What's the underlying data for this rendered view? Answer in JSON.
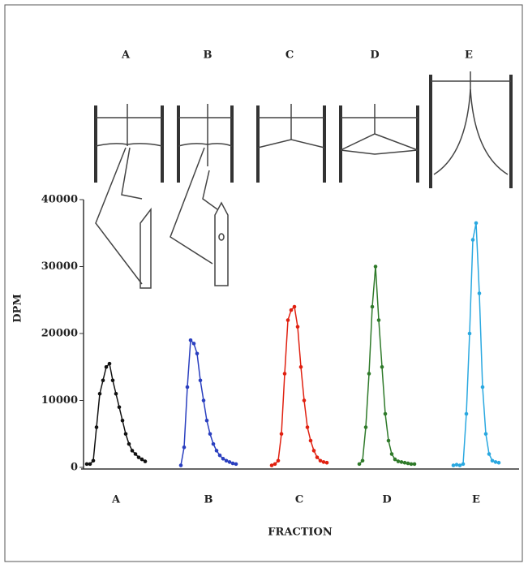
{
  "chart_data": {
    "type": "line",
    "ylabel": "DPM",
    "xlabel": "FRACTION",
    "diagrams": [
      {
        "label": "A"
      },
      {
        "label": "B"
      },
      {
        "label": "C"
      },
      {
        "label": "D"
      },
      {
        "label": "E"
      }
    ],
    "xlim": [
      0,
      134
    ],
    "ylim": [
      0,
      40000
    ],
    "yticks": [
      0,
      10000,
      20000,
      30000,
      40000
    ],
    "series": [
      {
        "name": "A",
        "color": "#111111",
        "x": [
          1,
          2,
          3,
          4,
          5,
          6,
          7,
          8,
          9,
          10,
          11,
          12,
          13,
          14,
          15,
          16,
          17,
          18,
          19
        ],
        "values": [
          500,
          500,
          1000,
          6000,
          11000,
          13000,
          15000,
          15500,
          13000,
          11000,
          9000,
          7000,
          5000,
          3500,
          2500,
          2000,
          1500,
          1200,
          900
        ]
      },
      {
        "name": "B",
        "color": "#2a3fbf",
        "x": [
          30,
          31,
          32,
          33,
          34,
          35,
          36,
          37,
          38,
          39,
          40,
          41,
          42,
          43,
          44,
          45,
          46,
          47
        ],
        "values": [
          300,
          3000,
          12000,
          19000,
          18500,
          17000,
          13000,
          10000,
          7000,
          5000,
          3500,
          2500,
          1800,
          1300,
          1000,
          800,
          600,
          500
        ]
      },
      {
        "name": "C",
        "color": "#e02010",
        "x": [
          58,
          59,
          60,
          61,
          62,
          63,
          64,
          65,
          66,
          67,
          68,
          69,
          70,
          71,
          72,
          73,
          74,
          75
        ],
        "values": [
          300,
          500,
          1000,
          5000,
          14000,
          22000,
          23500,
          24000,
          21000,
          15000,
          10000,
          6000,
          4000,
          2500,
          1500,
          1000,
          800,
          700
        ]
      },
      {
        "name": "D",
        "color": "#2f7a2a",
        "x": [
          85,
          86,
          87,
          88,
          89,
          90,
          91,
          92,
          93,
          94,
          95,
          96,
          97,
          98,
          99,
          100,
          101,
          102
        ],
        "values": [
          500,
          1000,
          6000,
          14000,
          24000,
          30000,
          22000,
          15000,
          8000,
          4000,
          2000,
          1200,
          900,
          800,
          700,
          600,
          500,
          500
        ]
      },
      {
        "name": "E",
        "color": "#2aa8e0",
        "x": [
          114,
          115,
          116,
          117,
          118,
          119,
          120,
          121,
          122,
          123,
          124,
          125,
          126,
          127,
          128
        ],
        "values": [
          300,
          400,
          300,
          500,
          8000,
          20000,
          34000,
          36500,
          26000,
          12000,
          5000,
          2000,
          1000,
          800,
          700
        ]
      }
    ]
  }
}
